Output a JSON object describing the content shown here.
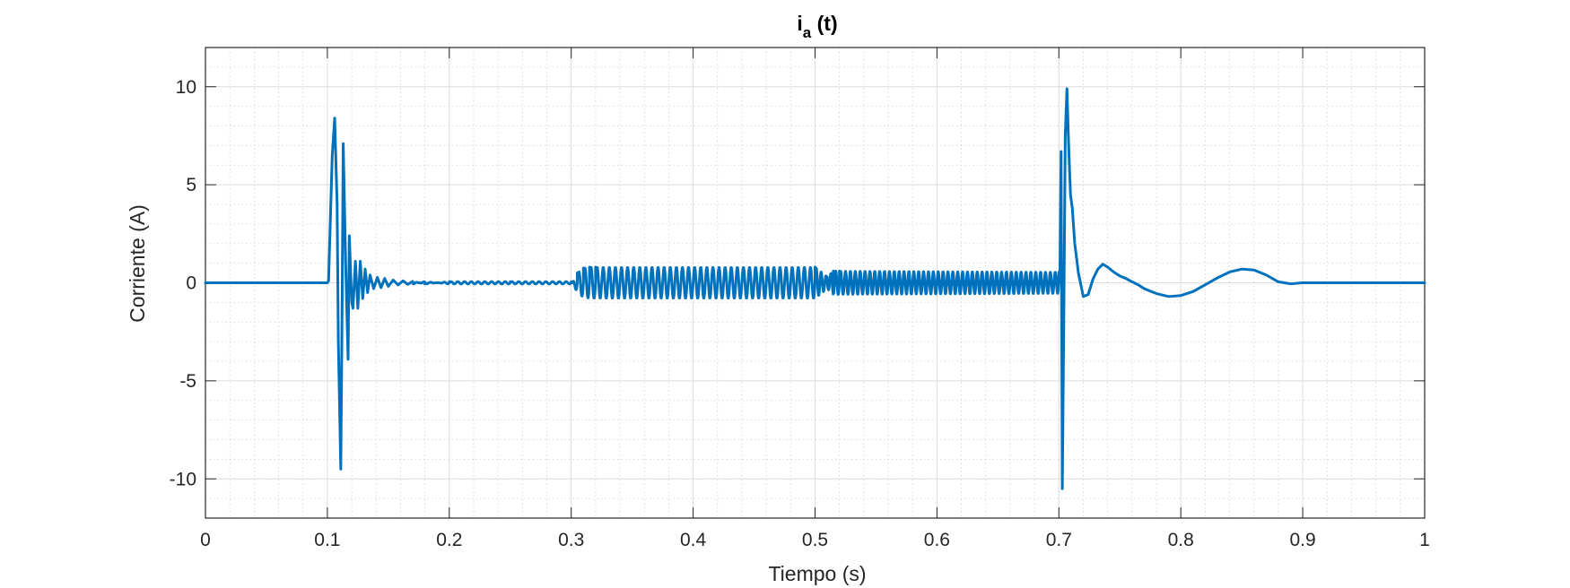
{
  "chart_data": {
    "type": "line",
    "title_main": "i",
    "title_sub": "a",
    "title_tail": " (t)",
    "xlabel": "Tiempo (s)",
    "ylabel": "Corriente (A)",
    "xlim": [
      0,
      1
    ],
    "ylim": [
      -12,
      12
    ],
    "xticks": [
      0,
      0.1,
      0.2,
      0.3,
      0.4,
      0.5,
      0.6,
      0.7,
      0.8,
      0.9,
      1
    ],
    "xtick_labels": [
      "0",
      "0.1",
      "0.2",
      "0.3",
      "0.4",
      "0.5",
      "0.6",
      "0.7",
      "0.8",
      "0.9",
      "1"
    ],
    "yticks": [
      10,
      5,
      0,
      -5,
      -10
    ],
    "ytick_labels": [
      "10",
      "5",
      "0",
      "-5",
      "-10"
    ],
    "grid": true,
    "minor_grid": true,
    "series": [
      {
        "color": "#0072BD",
        "x": [
          0,
          0.1,
          0.101,
          0.104,
          0.106,
          0.108,
          0.109,
          0.111,
          0.112,
          0.113,
          0.115,
          0.117,
          0.118,
          0.12,
          0.121,
          0.123,
          0.125,
          0.127,
          0.129,
          0.131,
          0.133,
          0.135,
          0.138,
          0.141,
          0.144,
          0.147,
          0.15,
          0.154,
          0.158,
          0.162,
          0.166,
          0.17,
          0.18,
          0.2,
          0.25,
          0.3,
          0.301,
          0.305,
          0.31,
          0.315,
          0.32,
          0.5,
          0.505,
          0.51,
          0.515,
          0.52,
          0.7,
          0.7008,
          0.7018,
          0.7028,
          0.704,
          0.7052,
          0.7066,
          0.708,
          0.7095,
          0.711,
          0.713,
          0.716,
          0.72,
          0.724,
          0.728,
          0.732,
          0.736,
          0.74,
          0.745,
          0.75,
          0.755,
          0.76,
          0.765,
          0.77,
          0.78,
          0.79,
          0.8,
          0.81,
          0.82,
          0.83,
          0.84,
          0.85,
          0.86,
          0.87,
          0.88,
          0.89,
          0.9,
          0.91,
          0.92,
          0.93,
          0.95,
          1.0
        ],
        "y": [
          0,
          0,
          0.1,
          6.5,
          8.4,
          4.0,
          -3.0,
          -9.5,
          -2.0,
          7.1,
          1.0,
          -3.9,
          2.4,
          -1.0,
          -1.3,
          1.1,
          -1.3,
          1.1,
          -0.8,
          0.7,
          -0.5,
          0.4,
          -0.3,
          0.28,
          -0.25,
          0.22,
          -0.18,
          0.14,
          -0.11,
          0.1,
          -0.08,
          0.07,
          -0.06,
          0.06,
          0.06,
          0.06,
          0,
          0.5,
          0.75,
          0.8,
          0.8,
          0.8,
          0.55,
          0.3,
          0.6,
          0.6,
          0.55,
          0,
          6.7,
          -10.5,
          -2.0,
          7.5,
          9.9,
          7.0,
          4.5,
          3.8,
          2.0,
          0.5,
          -0.7,
          -0.6,
          0.2,
          0.7,
          0.95,
          0.8,
          0.55,
          0.35,
          0.22,
          0.05,
          -0.1,
          -0.3,
          -0.55,
          -0.7,
          -0.65,
          -0.45,
          -0.1,
          0.25,
          0.55,
          0.7,
          0.65,
          0.4,
          0.05,
          -0.05,
          0,
          0,
          0,
          0,
          0,
          0
        ]
      }
    ]
  }
}
